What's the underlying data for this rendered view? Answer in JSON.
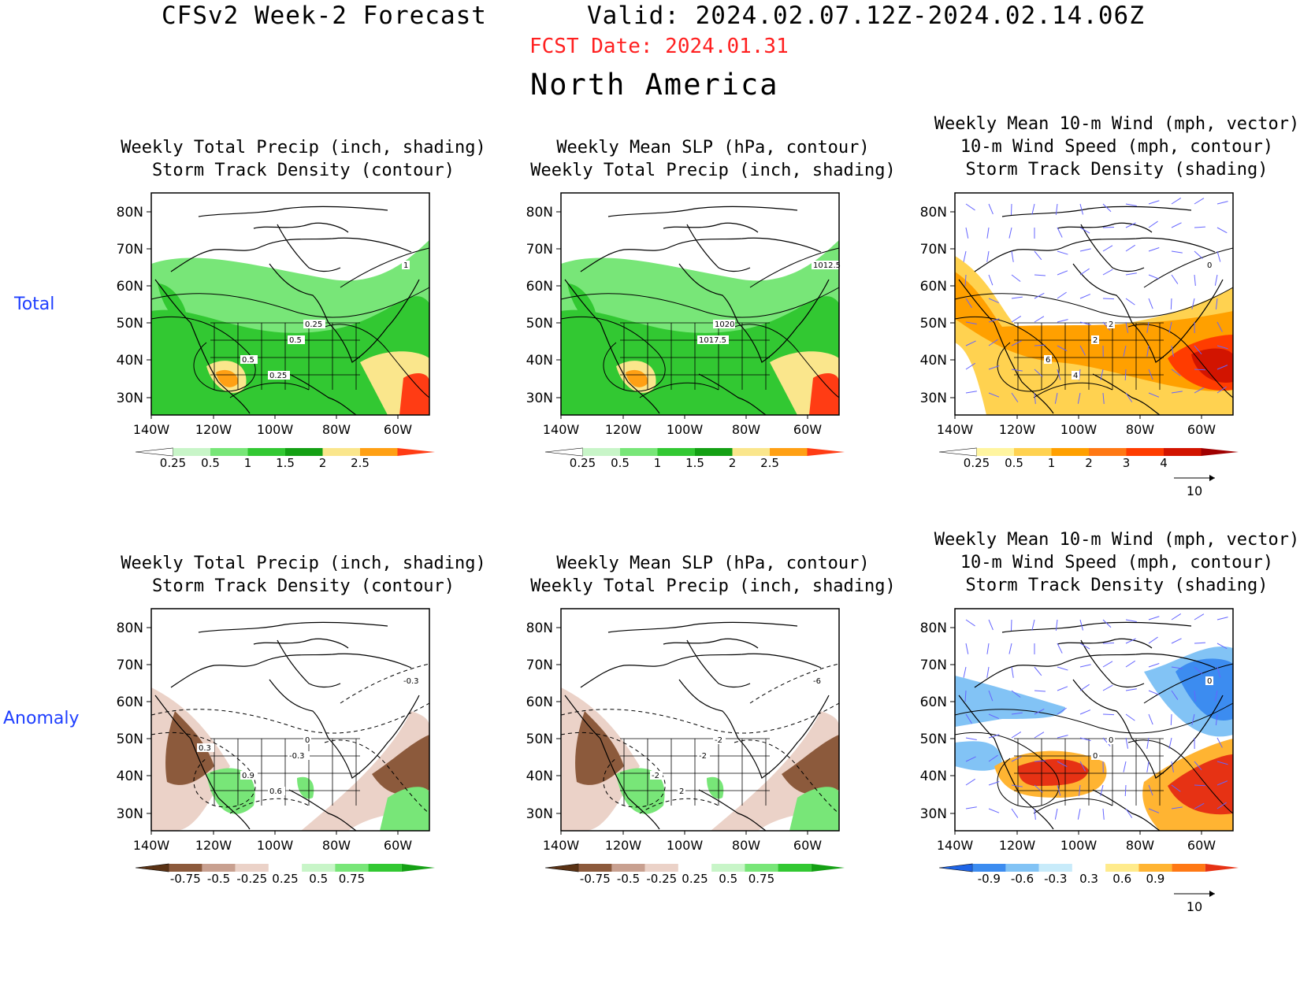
{
  "header": {
    "title": "CFSv2 Week-2 Forecast",
    "valid": "Valid: 2024.02.07.12Z-2024.02.14.06Z",
    "fcst_date": "FCST Date: 2024.01.31",
    "region": "North America"
  },
  "rows": {
    "total": "Total",
    "anomaly": "Anomaly"
  },
  "axes": {
    "lat_labels": [
      "80N",
      "70N",
      "60N",
      "50N",
      "40N",
      "30N"
    ],
    "lon_labels": [
      "140W",
      "120W",
      "100W",
      "80W",
      "60W"
    ]
  },
  "panels": [
    {
      "id": "total-precip",
      "row": "total",
      "title_lines": [
        "Weekly Total Precip (inch, shading)",
        "Storm Track Density (contour)"
      ],
      "colorbar": {
        "labels": [
          "0.25",
          "0.5",
          "1",
          "1.5",
          "2",
          "2.5"
        ],
        "colors": [
          "#ffffff",
          "#c8f5c8",
          "#78e678",
          "#32c832",
          "#14a014",
          "#fae68c",
          "#ffa014",
          "#ff3c14"
        ]
      },
      "contour_labels": [
        "0.5",
        "0.25",
        "1",
        "0.5",
        "0.25"
      ]
    },
    {
      "id": "total-slp",
      "row": "total",
      "title_lines": [
        "Weekly Mean SLP (hPa, contour)",
        "Weekly Total Precip (inch, shading)"
      ],
      "colorbar": {
        "labels": [
          "0.25",
          "0.5",
          "1",
          "1.5",
          "2",
          "2.5"
        ],
        "colors": [
          "#ffffff",
          "#c8f5c8",
          "#78e678",
          "#32c832",
          "#14a014",
          "#fae68c",
          "#ffa014",
          "#ff3c14"
        ]
      },
      "contour_labels": [
        "1017.5",
        "1020",
        "1012.5"
      ]
    },
    {
      "id": "total-wind",
      "row": "total",
      "title_lines": [
        "Weekly Mean 10-m Wind (mph, vector)",
        "10-m Wind Speed (mph, contour)",
        "Storm Track Density (shading)"
      ],
      "colorbar": {
        "labels": [
          "0.25",
          "0.5",
          "1",
          "2",
          "3",
          "4"
        ],
        "colors": [
          "#ffffff",
          "#fff5a0",
          "#ffd250",
          "#ffa000",
          "#ff7814",
          "#ff3c00",
          "#d21400",
          "#a00000"
        ]
      },
      "contour_labels": [
        "2",
        "2",
        "0",
        "6",
        "4"
      ],
      "vector_ref": "10"
    },
    {
      "id": "anom-precip",
      "row": "anomaly",
      "title_lines": [
        "Weekly Total Precip (inch, shading)",
        "Storm Track Density (contour)"
      ],
      "colorbar": {
        "labels": [
          "-0.75",
          "-0.5",
          "-0.25",
          "0.25",
          "0.5",
          "0.75"
        ],
        "colors": [
          "#5a3214",
          "#8c5a3c",
          "#c8a090",
          "#ebd2c8",
          "#ffffff",
          "#c8f5c8",
          "#78e678",
          "#32c832",
          "#14a014"
        ]
      },
      "contour_labels": [
        "-0.3",
        "0",
        "-0.3",
        "0.9",
        "0.6",
        "0.3"
      ]
    },
    {
      "id": "anom-slp",
      "row": "anomaly",
      "title_lines": [
        "Weekly Mean SLP (hPa, contour)",
        "Weekly Total Precip (inch, shading)"
      ],
      "colorbar": {
        "labels": [
          "-0.75",
          "-0.5",
          "-0.25",
          "0.25",
          "0.5",
          "0.75"
        ],
        "colors": [
          "#5a3214",
          "#8c5a3c",
          "#c8a090",
          "#ebd2c8",
          "#ffffff",
          "#c8f5c8",
          "#78e678",
          "#32c832",
          "#14a014"
        ]
      },
      "contour_labels": [
        "-2",
        "-2",
        "-6",
        "-2",
        "2"
      ]
    },
    {
      "id": "anom-wind",
      "row": "anomaly",
      "title_lines": [
        "Weekly Mean 10-m Wind (mph, vector)",
        "10-m Wind Speed (mph, contour)",
        "Storm Track Density (shading)"
      ],
      "colorbar": {
        "labels": [
          "-0.9",
          "-0.6",
          "-0.3",
          "0.3",
          "0.6",
          "0.9"
        ],
        "colors": [
          "#1e64e6",
          "#3c8cf0",
          "#82c3f5",
          "#c8ebfa",
          "#ffffff",
          "#ffeb8c",
          "#ffb432",
          "#ff7814",
          "#e63214"
        ]
      },
      "contour_labels": [
        "0",
        "0",
        "0"
      ],
      "vector_ref": "10"
    }
  ]
}
